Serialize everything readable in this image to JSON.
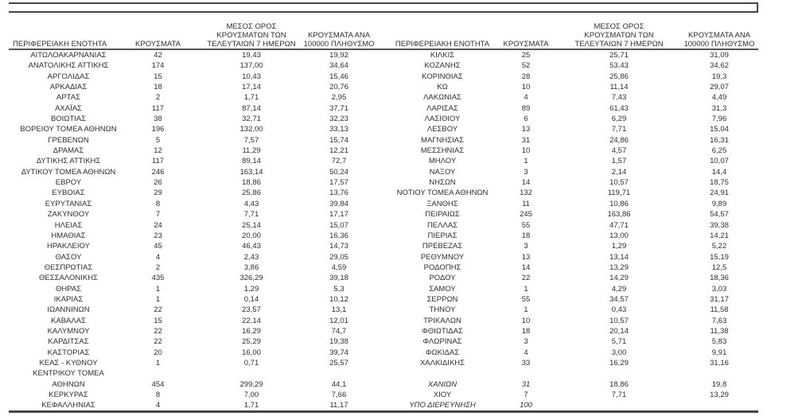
{
  "colors": {
    "text": "#2e2e2e",
    "rule_line": "#454545"
  },
  "table": {
    "headers": {
      "region": "ΠΕΡΙΦΕΡΕΙΑΚΗ ΕΝΟΤΗΤΑ",
      "cases": "ΚΡΟΥΣΜΑΤΑ",
      "avg7_lines": [
        "ΜΕΣΟΣ ΟΡΟΣ",
        "ΚΡΟΥΣΜΑΤΩΝ ΤΩΝ",
        "ΤΕΛΕΥΤΑΙΩΝ 7 ΗΜΕΡΩΝ"
      ],
      "per100k_lines": [
        "ΚΡΟΥΣΜΑΤΑ ΑΝΑ",
        "100000 ΠΛΗΘΥΣΜΟ"
      ]
    },
    "rows": [
      {
        "left": [
          "ΑΙΤΩΛΟΑΚΑΡΝΑΝΙΑΣ",
          "42",
          "19,43",
          "19,92"
        ],
        "right": [
          "ΚΙΛΚΙΣ",
          "25",
          "25,71",
          "31,09"
        ]
      },
      {
        "left": [
          "ΑΝΑΤΟΛΙΚΗΣ ΑΤΤΙΚΗΣ",
          "174",
          "137,00",
          "34,64"
        ],
        "right": [
          "ΚΟΖΑΝΗΣ",
          "52",
          "53,43",
          "34,62"
        ]
      },
      {
        "left": [
          "ΑΡΓΟΛΙΔΑΣ",
          "15",
          "10,43",
          "15,46"
        ],
        "right": [
          "ΚΟΡΙΝΘΙΑΣ",
          "28",
          "25,86",
          "19,3"
        ]
      },
      {
        "left": [
          "ΑΡΚΑΔΙΑΣ",
          "18",
          "17,14",
          "20,76"
        ],
        "right": [
          "ΚΩ",
          "10",
          "11,14",
          "29,07"
        ]
      },
      {
        "left": [
          "ΑΡΤΑΣ",
          "2",
          "1,71",
          "2,95"
        ],
        "right": [
          "ΛΑΚΩΝΙΑΣ",
          "4",
          "7,43",
          "4,49"
        ]
      },
      {
        "left": [
          "ΑΧΑΪΑΣ",
          "117",
          "87,14",
          "37,71"
        ],
        "right": [
          "ΛΑΡΙΣΑΣ",
          "89",
          "61,43",
          "31,3"
        ]
      },
      {
        "left": [
          "ΒΟΙΩΤΙΑΣ",
          "38",
          "32,71",
          "32,23"
        ],
        "right": [
          "ΛΑΣΙΘΙΟΥ",
          "6",
          "6,29",
          "7,96"
        ]
      },
      {
        "left": [
          "ΒΟΡΕΙΟΥ ΤΟΜΕΑ ΑΘΗΝΩΝ",
          "196",
          "132,00",
          "33,13"
        ],
        "right": [
          "ΛΕΣΒΟΥ",
          "13",
          "7,71",
          "15,04"
        ]
      },
      {
        "left": [
          "ΓΡΕΒΕΝΩΝ",
          "5",
          "7,57",
          "15,74"
        ],
        "right": [
          "ΜΑΓΝΗΣΙΑΣ",
          "31",
          "24,86",
          "16,31"
        ]
      },
      {
        "left": [
          "ΔΡΑΜΑΣ",
          "12",
          "11,29",
          "12,21"
        ],
        "right": [
          "ΜΕΣΣΗΝΙΑΣ",
          "10",
          "4,57",
          "6,25"
        ]
      },
      {
        "left": [
          "ΔΥΤΙΚΗΣ ΑΤΤΙΚΗΣ",
          "117",
          "89,14",
          "72,7"
        ],
        "right": [
          "ΜΗΛΟΥ",
          "1",
          "1,57",
          "10,07"
        ]
      },
      {
        "left": [
          "ΔΥΤΙΚΟΥ ΤΟΜΕΑ ΑΘΗΝΩΝ",
          "246",
          "163,14",
          "50,24"
        ],
        "right": [
          "ΝΑΞΟΥ",
          "3",
          "2,14",
          "14,4"
        ]
      },
      {
        "left": [
          "ΕΒΡΟΥ",
          "26",
          "18,86",
          "17,57"
        ],
        "right": [
          "ΝΗΣΩΝ",
          "14",
          "10,57",
          "18,75"
        ]
      },
      {
        "left": [
          "ΕΥΒΟΙΑΣ",
          "29",
          "25,86",
          "13,76"
        ],
        "right": [
          "ΝΟΤΙΟΥ ΤΟΜΕΑ ΑΘΗΝΩΝ",
          "132",
          "119,71",
          "24,91"
        ]
      },
      {
        "left": [
          "ΕΥΡΥΤΑΝΙΑΣ",
          "8",
          "4,43",
          "39,84"
        ],
        "right": [
          "ΞΑΝΘΗΣ",
          "11",
          "10,86",
          "9,89"
        ]
      },
      {
        "left": [
          "ΖΑΚΥΝΘΟΥ",
          "7",
          "7,71",
          "17,17"
        ],
        "right": [
          "ΠΕΙΡΑΙΩΣ",
          "245",
          "163,86",
          "54,57"
        ]
      },
      {
        "left": [
          "ΗΛΕΙΑΣ",
          "24",
          "25,14",
          "15,07"
        ],
        "right": [
          "ΠΕΛΛΑΣ",
          "55",
          "47,71",
          "39,38"
        ]
      },
      {
        "left": [
          "ΗΜΑΘΙΑΣ",
          "23",
          "20,00",
          "16,36"
        ],
        "right": [
          "ΠΙΕΡΙΑΣ",
          "18",
          "13,00",
          "14,21"
        ]
      },
      {
        "left": [
          "ΗΡΑΚΛΕΙΟΥ",
          "45",
          "46,43",
          "14,73"
        ],
        "right": [
          "ΠΡΕΒΕΖΑΣ",
          "3",
          "1,29",
          "5,22"
        ]
      },
      {
        "left": [
          "ΘΑΣΟΥ",
          "4",
          "2,43",
          "29,05"
        ],
        "right": [
          "ΡΕΘΥΜΝΟΥ",
          "13",
          "13,14",
          "15,19"
        ]
      },
      {
        "left": [
          "ΘΕΣΠΡΩΤΙΑΣ",
          "2",
          "3,86",
          "4,59"
        ],
        "right": [
          "ΡΟΔΟΠΗΣ",
          "14",
          "13,29",
          "12,5"
        ]
      },
      {
        "left": [
          "ΘΕΣΣΑΛΟΝΙΚΗΣ",
          "435",
          "326,29",
          "39,18"
        ],
        "right": [
          "ΡΟΔΟΥ",
          "22",
          "14,29",
          "18,36"
        ]
      },
      {
        "left": [
          "ΘΗΡΑΣ",
          "1",
          "1,29",
          "5,3"
        ],
        "right": [
          "ΣΑΜΟΥ",
          "1",
          "4,29",
          "3,03"
        ]
      },
      {
        "left": [
          "ΙΚΑΡΙΑΣ",
          "1",
          "0,14",
          "10,12"
        ],
        "right": [
          "ΣΕΡΡΩΝ",
          "55",
          "34,57",
          "31,17"
        ]
      },
      {
        "left": [
          "ΙΩΑΝΝΙΝΩΝ",
          "22",
          "23,57",
          "13,1"
        ],
        "right": [
          "ΤΗΝΟΥ",
          "1",
          "0,43",
          "11,58"
        ]
      },
      {
        "left": [
          "ΚΑΒΑΛΑΣ",
          "15",
          "22,14",
          "12,01"
        ],
        "right": [
          "ΤΡΙΚΑΛΩΝ",
          "10",
          "10,57",
          "7,63"
        ]
      },
      {
        "left": [
          "ΚΑΛΥΜΝΟΥ",
          "22",
          "16,29",
          "74,7"
        ],
        "right": [
          "ΦΘΙΩΤΙΔΑΣ",
          "18",
          "20,14",
          "11,38"
        ]
      },
      {
        "left": [
          "ΚΑΡΔΙΤΣΑΣ",
          "22",
          "25,29",
          "19,38"
        ],
        "right": [
          "ΦΛΩΡΙΝΑΣ",
          "3",
          "5,71",
          "5,83"
        ]
      },
      {
        "left": [
          "ΚΑΣΤΟΡΙΑΣ",
          "20",
          "16,00",
          "39,74"
        ],
        "right": [
          "ΦΩΚΙΔΑΣ",
          "4",
          "3,00",
          "9,91"
        ]
      },
      {
        "left": [
          "ΚΕΑΣ - ΚΥΘΝΟΥ",
          "1",
          "0,71",
          "25,57"
        ],
        "right": [
          "ΧΑΛΚΙΔΙΚΗΣ",
          "33",
          "16,29",
          "31,16"
        ]
      },
      {
        "left": [
          "ΚΕΝΤΡΙΚΟΥ ΤΟΜΕΑ",
          "",
          "",
          ""
        ],
        "right": [
          "",
          "",
          "",
          ""
        ]
      },
      {
        "left": [
          "ΑΘΗΝΩΝ",
          "454",
          "299,29",
          "44,1"
        ],
        "right": [
          "ΧΑΝΙΩΝ",
          "31",
          "18,86",
          "19,8"
        ],
        "italic_right": [
          0,
          1
        ]
      },
      {
        "left": [
          "ΚΕΡΚΥΡΑΣ",
          "8",
          "7,00",
          "7,66"
        ],
        "right": [
          "ΧΙΟΥ",
          "7",
          "7,71",
          "13,29"
        ]
      },
      {
        "left": [
          "ΚΕΦΑΛΛΗΝΙΑΣ",
          "4",
          "1,71",
          "11,17"
        ],
        "right": [
          "ΥΠΟ ΔΙΕΡΕΥΝΗΣΗ",
          "100",
          "",
          ""
        ],
        "italic_right": [
          0,
          1
        ]
      }
    ]
  }
}
